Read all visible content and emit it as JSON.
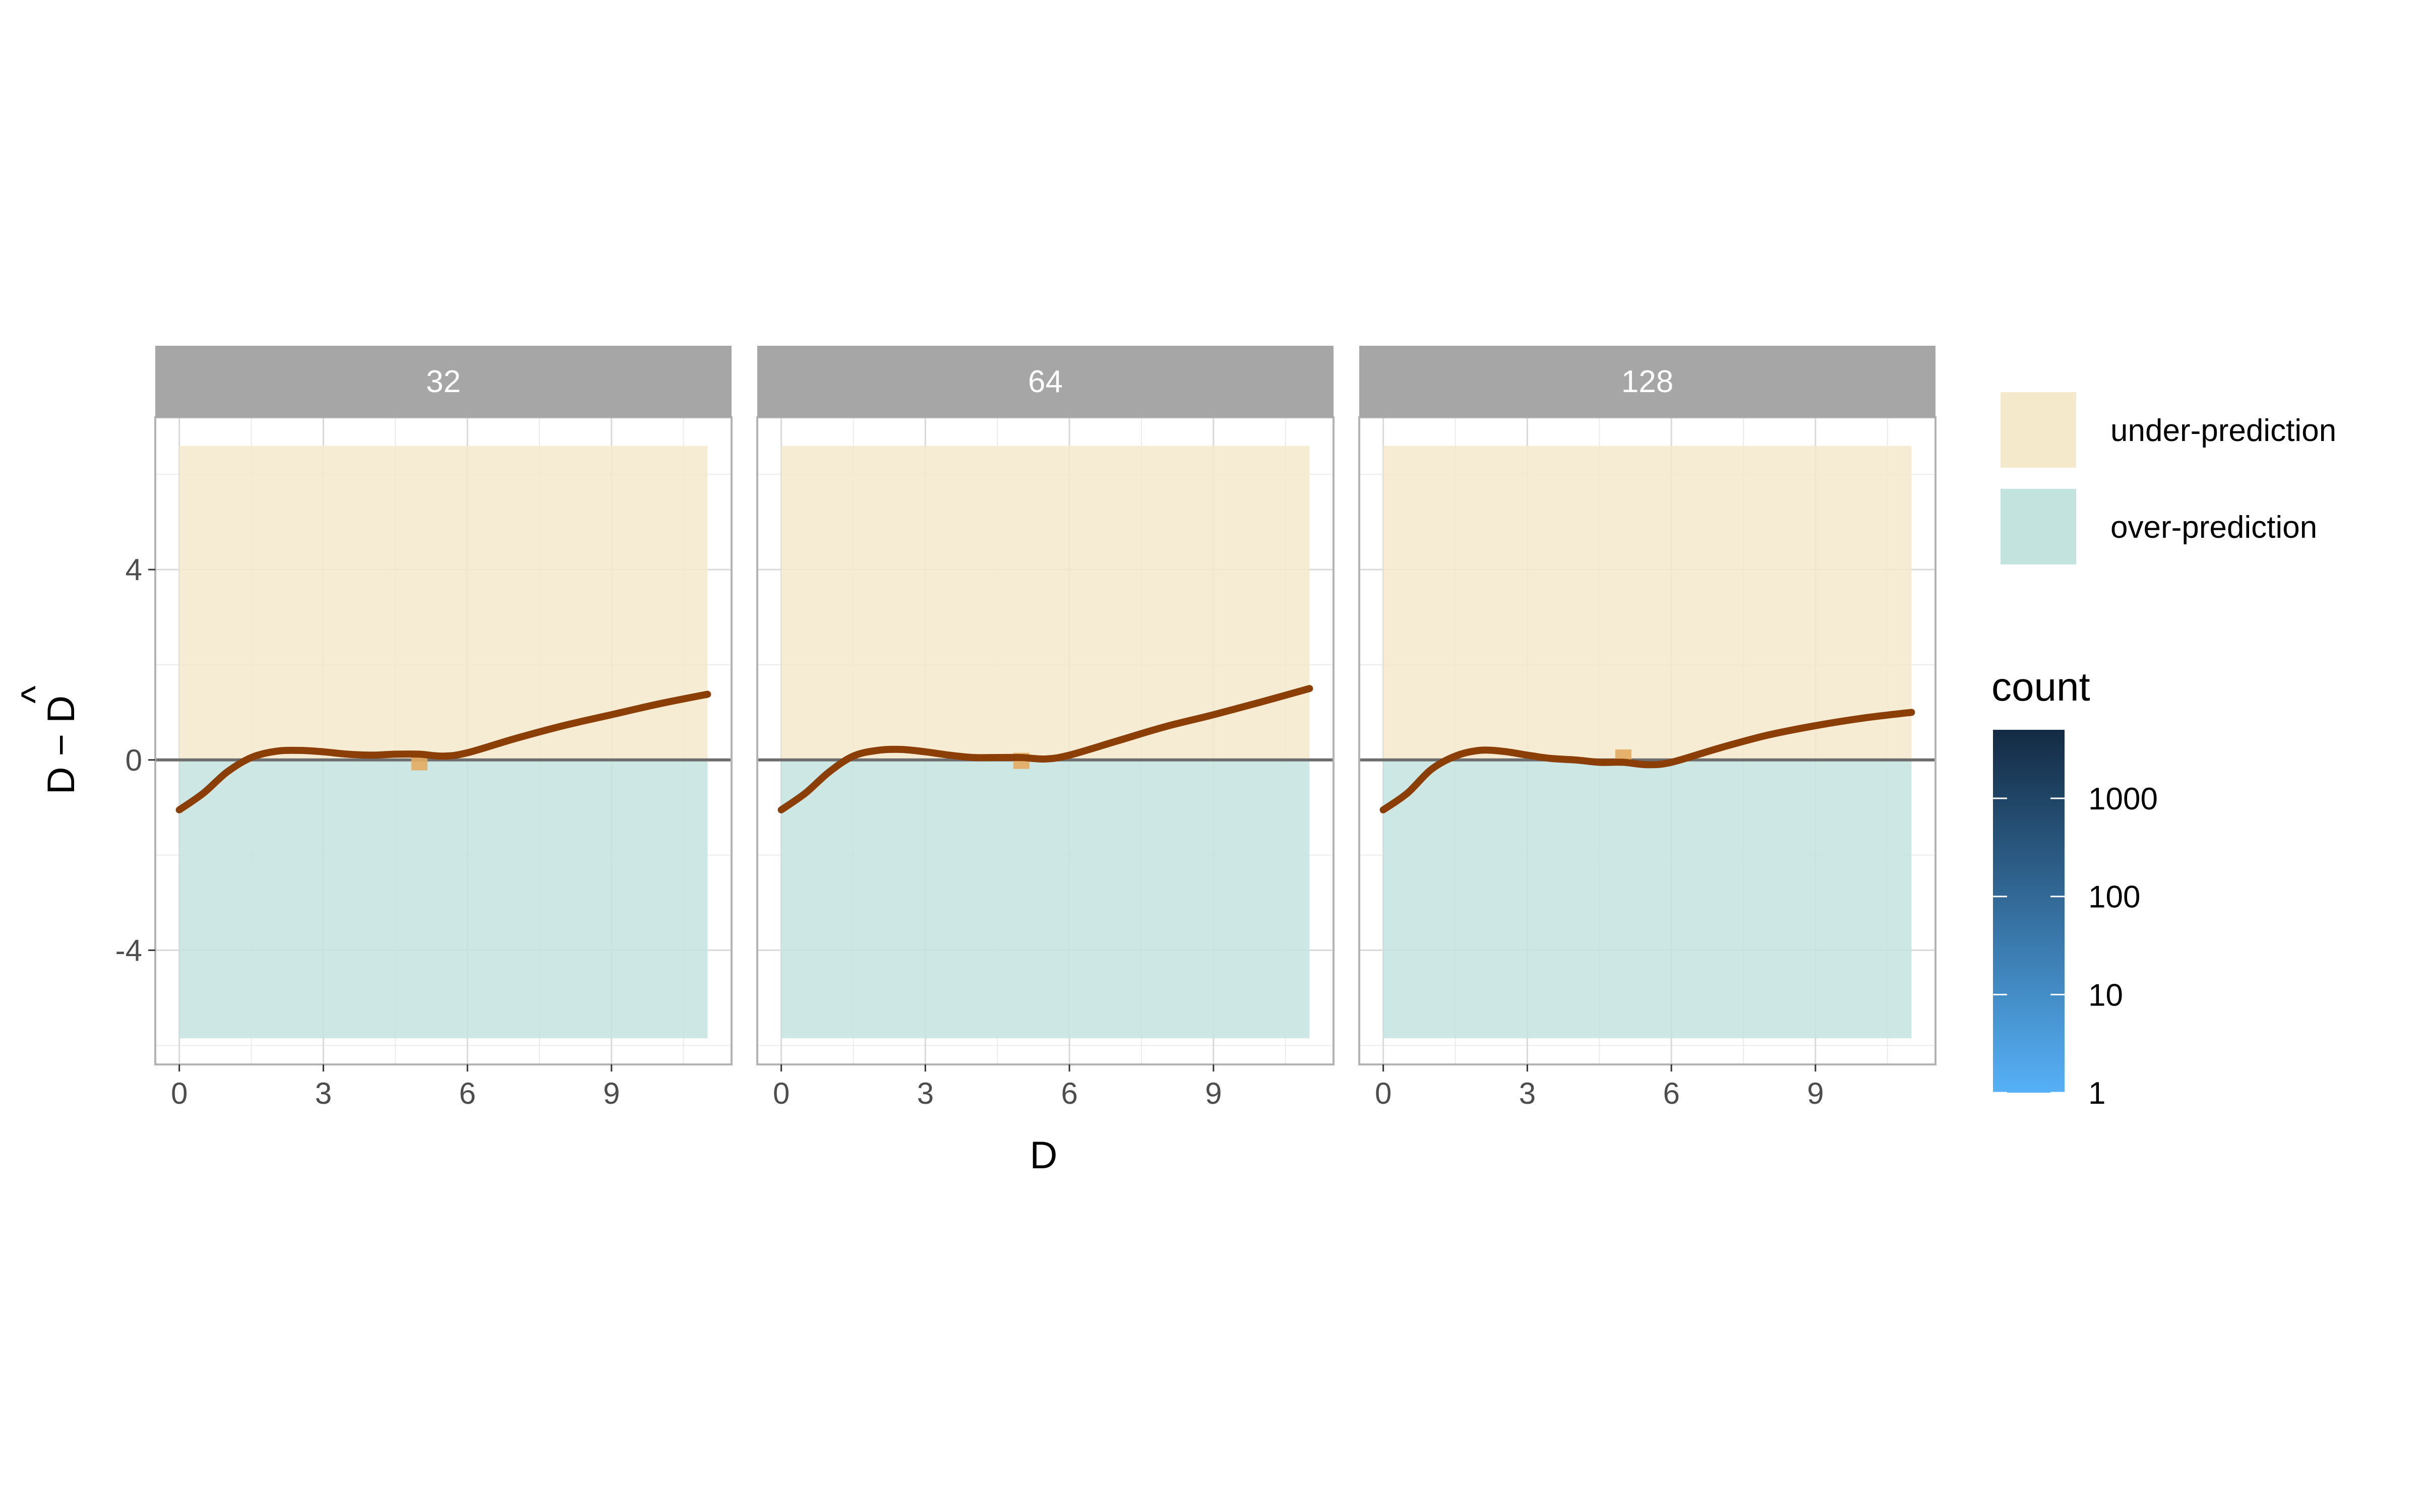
{
  "chart_data": {
    "type": "line",
    "facet_variable_values": [
      "32",
      "64",
      "128"
    ],
    "xlabel": "D",
    "ylabel_parts": {
      "base": "D − D",
      "hat": "^"
    },
    "xlim": [
      -0.5,
      11.5
    ],
    "ylim": [
      -6.4,
      7.2
    ],
    "x_ticks": [
      0,
      3,
      6,
      9
    ],
    "y_ticks": [
      -4,
      0,
      4
    ],
    "reference_line_y": 0,
    "regions": [
      {
        "name": "under-prediction",
        "color": "#f5e9cc",
        "x": [
          0,
          11
        ],
        "y": [
          0,
          6.6
        ]
      },
      {
        "name": "over-prediction",
        "color": "#c3e3df",
        "x": [
          0,
          11
        ],
        "y": [
          -5.85,
          0
        ]
      }
    ],
    "panels": [
      {
        "label": "32",
        "smooth": [
          {
            "x": 0,
            "y": -1.05
          },
          {
            "x": 0.5,
            "y": -0.7
          },
          {
            "x": 1.0,
            "y": -0.25
          },
          {
            "x": 1.5,
            "y": 0.05
          },
          {
            "x": 2.0,
            "y": 0.18
          },
          {
            "x": 2.5,
            "y": 0.2
          },
          {
            "x": 3.0,
            "y": 0.17
          },
          {
            "x": 3.5,
            "y": 0.12
          },
          {
            "x": 4.0,
            "y": 0.1
          },
          {
            "x": 4.5,
            "y": 0.12
          },
          {
            "x": 5.0,
            "y": 0.12
          },
          {
            "x": 5.5,
            "y": 0.08
          },
          {
            "x": 6.0,
            "y": 0.15
          },
          {
            "x": 7.0,
            "y": 0.45
          },
          {
            "x": 8.0,
            "y": 0.72
          },
          {
            "x": 9.0,
            "y": 0.95
          },
          {
            "x": 10.0,
            "y": 1.18
          },
          {
            "x": 11.0,
            "y": 1.38
          }
        ],
        "tiles": [
          {
            "x": 5,
            "y": -0.05,
            "count": 1
          }
        ]
      },
      {
        "label": "64",
        "smooth": [
          {
            "x": 0,
            "y": -1.05
          },
          {
            "x": 0.5,
            "y": -0.7
          },
          {
            "x": 1.0,
            "y": -0.25
          },
          {
            "x": 1.5,
            "y": 0.08
          },
          {
            "x": 2.0,
            "y": 0.2
          },
          {
            "x": 2.5,
            "y": 0.22
          },
          {
            "x": 3.0,
            "y": 0.17
          },
          {
            "x": 3.5,
            "y": 0.1
          },
          {
            "x": 4.0,
            "y": 0.05
          },
          {
            "x": 4.5,
            "y": 0.05
          },
          {
            "x": 5.0,
            "y": 0.05
          },
          {
            "x": 5.5,
            "y": 0.02
          },
          {
            "x": 6.0,
            "y": 0.1
          },
          {
            "x": 7.0,
            "y": 0.4
          },
          {
            "x": 8.0,
            "y": 0.7
          },
          {
            "x": 9.0,
            "y": 0.95
          },
          {
            "x": 10.0,
            "y": 1.22
          },
          {
            "x": 11.0,
            "y": 1.5
          }
        ],
        "tiles": [
          {
            "x": 5,
            "y": -0.02,
            "count": 1
          }
        ]
      },
      {
        "label": "128",
        "smooth": [
          {
            "x": 0,
            "y": -1.05
          },
          {
            "x": 0.5,
            "y": -0.7
          },
          {
            "x": 1.0,
            "y": -0.2
          },
          {
            "x": 1.5,
            "y": 0.08
          },
          {
            "x": 2.0,
            "y": 0.2
          },
          {
            "x": 2.5,
            "y": 0.18
          },
          {
            "x": 3.0,
            "y": 0.1
          },
          {
            "x": 3.5,
            "y": 0.03
          },
          {
            "x": 4.0,
            "y": 0.0
          },
          {
            "x": 4.5,
            "y": -0.05
          },
          {
            "x": 5.0,
            "y": -0.05
          },
          {
            "x": 5.5,
            "y": -0.1
          },
          {
            "x": 6.0,
            "y": -0.05
          },
          {
            "x": 7.0,
            "y": 0.25
          },
          {
            "x": 8.0,
            "y": 0.52
          },
          {
            "x": 9.0,
            "y": 0.72
          },
          {
            "x": 10.0,
            "y": 0.88
          },
          {
            "x": 11.0,
            "y": 1.0
          }
        ],
        "tiles": [
          {
            "x": 5,
            "y": 0.05,
            "count": 1
          }
        ]
      }
    ],
    "smooth_color": "#8b3e06",
    "tile_color": "#e3ab5f",
    "legend_fill": [
      {
        "label": "under-prediction",
        "color": "#f5e9cc"
      },
      {
        "label": "over-prediction",
        "color": "#c3e3df"
      }
    ],
    "colorbar": {
      "title": "count",
      "scale": "log10",
      "range": [
        1,
        5000
      ],
      "labels": [
        1,
        10,
        100,
        1000
      ],
      "low_color": "#56b1f7",
      "high_color": "#132b43"
    },
    "grid": true,
    "legend_position": "right"
  }
}
